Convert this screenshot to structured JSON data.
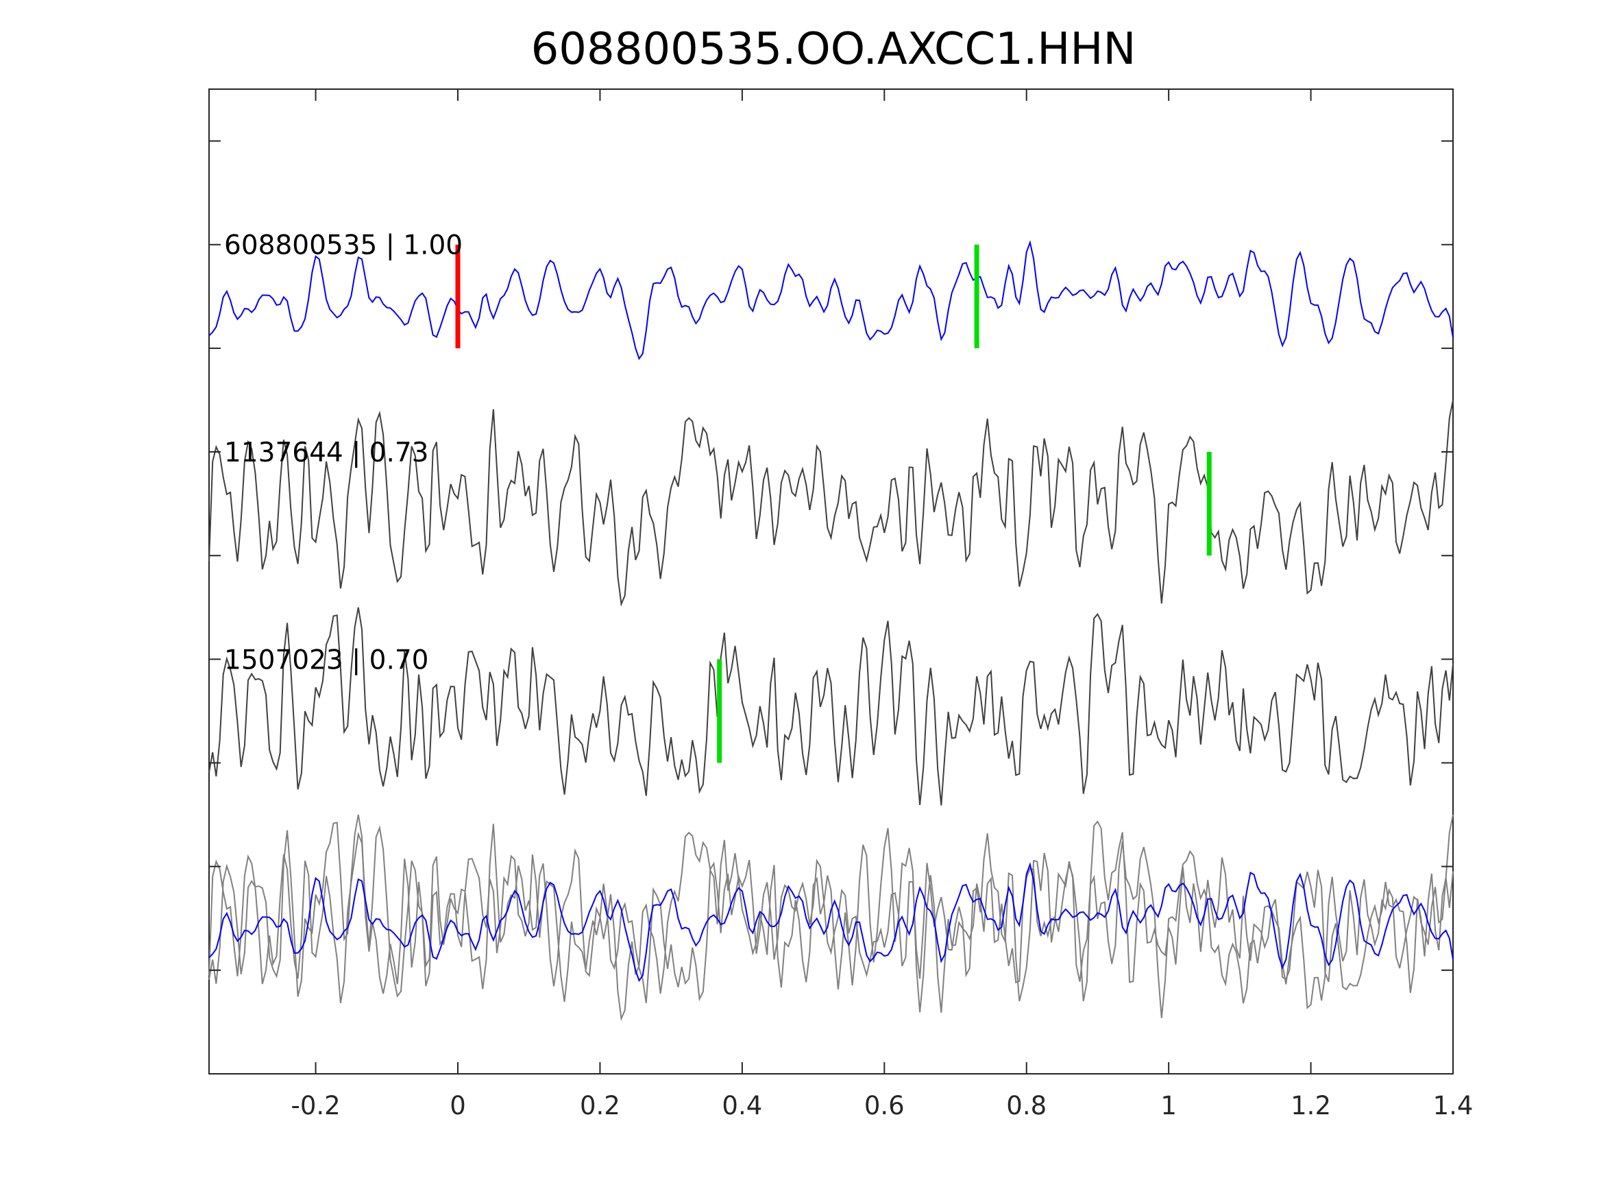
{
  "chart_data": {
    "type": "line",
    "title": "608800535.OO.AXCC1.HHN",
    "xlabel": "",
    "ylabel": "",
    "xlim": [
      -0.35,
      1.4
    ],
    "x_ticks": [
      -0.2,
      0,
      0.2,
      0.4,
      0.6,
      0.8,
      1,
      1.2,
      1.4
    ],
    "x_tick_labels": [
      "-0.2",
      "0",
      "0.2",
      "0.4",
      "0.6",
      "0.8",
      "1",
      "1.2",
      "1.4"
    ],
    "ylim": [
      0,
      9.5
    ],
    "y_ticks": [
      1,
      2,
      3,
      4,
      5,
      6,
      7,
      8,
      9
    ],
    "y_tick_labels": [],
    "grid": false,
    "legend": "none",
    "sample_interval": 0.005,
    "series": [
      {
        "label": "608800535 | 1.00",
        "offset": 7.5,
        "color": "#0000ff",
        "amplitude": 0.6,
        "picks": [
          {
            "x": 0.0,
            "color": "#ff0000"
          },
          {
            "x": 0.73,
            "color": "#00dd00"
          }
        ]
      },
      {
        "label": "1137644 | 0.73",
        "offset": 5.5,
        "color": "#404040",
        "amplitude": 1.0,
        "picks": [
          {
            "x": 1.057,
            "color": "#00dd00"
          }
        ]
      },
      {
        "label": "1507023 | 0.70",
        "offset": 3.5,
        "color": "#404040",
        "amplitude": 1.0,
        "picks": [
          {
            "x": 0.368,
            "color": "#00dd00"
          }
        ]
      }
    ],
    "overlay_offset": 1.5,
    "overlay_colors": {
      "reference": "#0000ff",
      "others": "#808080"
    }
  }
}
